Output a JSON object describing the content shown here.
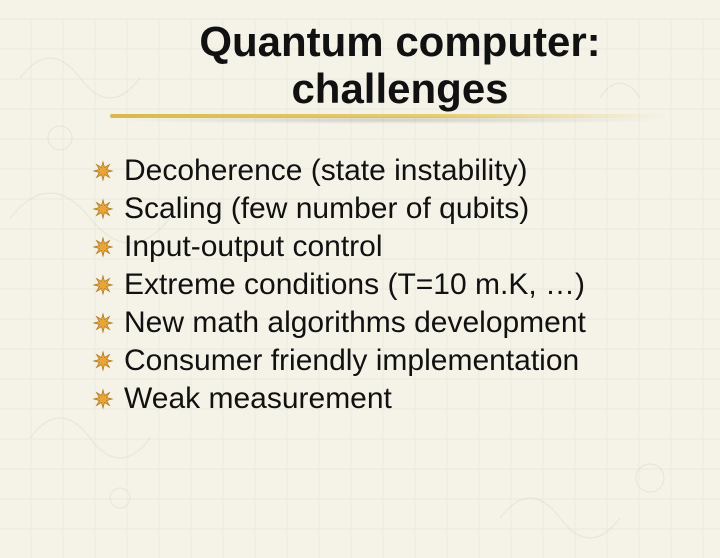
{
  "background_color": "#f5f3e8",
  "title": {
    "line1": "Quantum computer:",
    "line2": "challenges",
    "fontsize": 42,
    "color": "#111111",
    "underline_color": "#d9b94d"
  },
  "bullet_style": {
    "icon_fill": "#e8a63a",
    "icon_stroke": "#b0781e",
    "fontsize": 30,
    "text_color": "#111111"
  },
  "bullets": [
    "Decoherence (state instability)",
    "Scaling (few number of qubits)",
    "Input-output control",
    "Extreme conditions (T=10 m.K, …)",
    "New math algorithms development",
    "Consumer friendly implementation",
    "Weak measurement"
  ]
}
